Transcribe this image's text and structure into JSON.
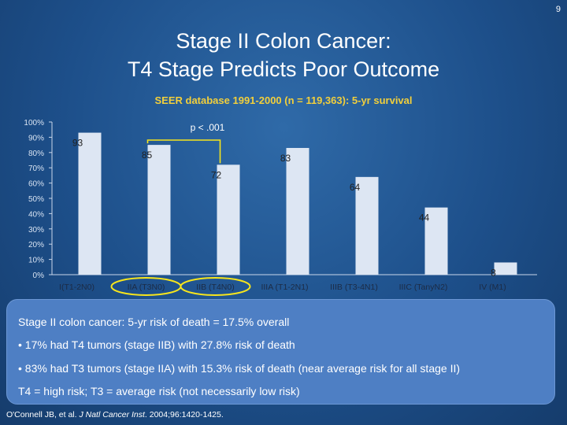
{
  "page_number": "9",
  "title": {
    "line1": "Stage II Colon Cancer:",
    "line2": "T4 Stage Predicts Poor Outcome"
  },
  "subtitle": "SEER database 1991-2000 (n = 119,363): 5-yr survival",
  "chart_data": {
    "type": "bar",
    "title": "SEER database 1991-2000 (n = 119,363): 5-yr survival",
    "categories": [
      "I(T1-2N0)",
      "IIA (T3N0)",
      "IIB (T4N0)",
      "IIIA (T1-2N1)",
      "IIIB (T3-4N1)",
      "IIIC (TanyN2)",
      "IV (M1)"
    ],
    "values": [
      93,
      85,
      72,
      83,
      64,
      44,
      8
    ],
    "value_labels": [
      "93",
      "85",
      "72",
      "83",
      "64",
      "44",
      "8"
    ],
    "ylim": [
      0,
      100
    ],
    "yticks": [
      "0%",
      "10%",
      "20%",
      "30%",
      "40%",
      "50%",
      "60%",
      "70%",
      "80%",
      "90%",
      "100%"
    ],
    "annotation": "p < .001",
    "highlighted_categories": [
      "IIA (T3N0)",
      "IIB (T4N0)"
    ],
    "bar_color": "#dde6f3",
    "highlight_color": "#f7e51c"
  },
  "info_box": {
    "line1": "Stage II colon cancer:  5-yr risk of death = 17.5% overall",
    "bullet1": "•  17% had T4 tumors (stage IIB) with 27.8% risk of death",
    "bullet2": "•  83% had T3 tumors (stage IIA) with 15.3% risk of death (near average risk for all stage II)",
    "line2": "T4 = high risk; T3 = average risk (not necessarily low risk)"
  },
  "citation": {
    "authors": "O'Connell JB, et al. ",
    "journal": "J Natl Cancer Inst",
    "details": ". 2004;96:1420-1425."
  }
}
